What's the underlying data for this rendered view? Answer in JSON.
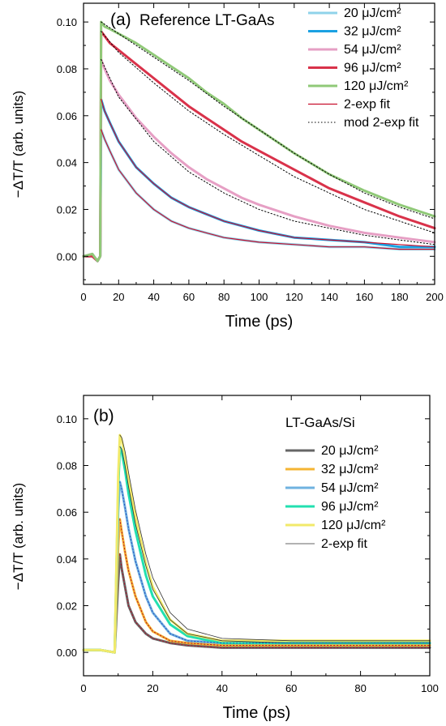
{
  "chart_data": [
    {
      "panel": "(a)",
      "type": "line",
      "title": "Reference LT-GaAs",
      "xlabel": "Time (ps)",
      "ylabel": "−ΔT/T (arb. units)",
      "xlim": [
        0,
        200
      ],
      "ylim": [
        -0.012,
        0.108
      ],
      "xticks": [
        0,
        20,
        40,
        60,
        80,
        100,
        120,
        140,
        160,
        180,
        200
      ],
      "yticks": [
        0.0,
        0.02,
        0.04,
        0.06,
        0.08,
        0.1
      ],
      "ytick_labels": [
        "0.00",
        "0.02",
        "0.04",
        "0.06",
        "0.08",
        "0.10"
      ],
      "legend_position": "top-right",
      "series": [
        {
          "name": "20 μJ/cm²",
          "color": "#8fd3ea",
          "width": 3,
          "style": "solid",
          "x": [
            0,
            5,
            8,
            9.5,
            10,
            12,
            15,
            20,
            30,
            40,
            50,
            60,
            70,
            80,
            90,
            100,
            120,
            140,
            160,
            180,
            200
          ],
          "y": [
            0.0,
            0.001,
            -0.002,
            0.0,
            0.054,
            0.05,
            0.045,
            0.037,
            0.027,
            0.02,
            0.015,
            0.012,
            0.01,
            0.008,
            0.007,
            0.006,
            0.005,
            0.004,
            0.004,
            0.003,
            0.003
          ]
        },
        {
          "name": "32 μJ/cm²",
          "color": "#1ba1e2",
          "width": 3,
          "style": "solid",
          "x": [
            0,
            5,
            8,
            9.5,
            10,
            12,
            15,
            20,
            30,
            40,
            50,
            60,
            70,
            80,
            90,
            100,
            120,
            140,
            160,
            180,
            200
          ],
          "y": [
            0.0,
            0.0,
            -0.002,
            0.0,
            0.067,
            0.062,
            0.057,
            0.049,
            0.038,
            0.031,
            0.025,
            0.021,
            0.018,
            0.015,
            0.013,
            0.011,
            0.008,
            0.007,
            0.006,
            0.004,
            0.004
          ]
        },
        {
          "name": "54 μJ/cm²",
          "color": "#e69fc4",
          "width": 3,
          "style": "solid",
          "x": [
            0,
            5,
            8,
            9.5,
            10,
            12,
            15,
            20,
            30,
            40,
            50,
            60,
            70,
            80,
            90,
            100,
            120,
            140,
            160,
            180,
            200
          ],
          "y": [
            0.0,
            0.001,
            -0.002,
            0.0,
            0.084,
            0.08,
            0.075,
            0.069,
            0.059,
            0.051,
            0.044,
            0.038,
            0.033,
            0.029,
            0.025,
            0.022,
            0.017,
            0.013,
            0.01,
            0.008,
            0.006
          ]
        },
        {
          "name": "96 μJ/cm²",
          "color": "#d9324a",
          "width": 3,
          "style": "solid",
          "x": [
            0,
            5,
            8,
            9.5,
            10,
            12,
            15,
            20,
            30,
            40,
            50,
            60,
            70,
            80,
            90,
            100,
            120,
            140,
            160,
            180,
            200
          ],
          "y": [
            0.0,
            0.0,
            -0.002,
            0.0,
            0.096,
            0.094,
            0.091,
            0.088,
            0.082,
            0.076,
            0.07,
            0.064,
            0.059,
            0.054,
            0.049,
            0.045,
            0.037,
            0.029,
            0.023,
            0.017,
            0.012
          ]
        },
        {
          "name": "120 μJ/cm²",
          "color": "#90c978",
          "width": 3,
          "style": "solid",
          "x": [
            0,
            5,
            8,
            9.5,
            10,
            12,
            15,
            20,
            30,
            40,
            50,
            60,
            70,
            80,
            90,
            100,
            120,
            140,
            160,
            180,
            200
          ],
          "y": [
            0.0,
            0.001,
            -0.002,
            0.0,
            0.1,
            0.098,
            0.097,
            0.095,
            0.091,
            0.086,
            0.081,
            0.076,
            0.07,
            0.065,
            0.059,
            0.054,
            0.044,
            0.035,
            0.028,
            0.022,
            0.017
          ]
        },
        {
          "name": "2-exp fit",
          "color": "#c8102e",
          "width": 1.2,
          "style": "solid",
          "x": [
            10,
            12,
            15,
            20,
            30,
            40,
            50,
            60,
            70,
            80,
            90,
            100,
            120,
            140,
            160,
            180,
            200
          ],
          "y": [
            0.054,
            0.05,
            0.045,
            0.037,
            0.027,
            0.02,
            0.015,
            0.012,
            0.01,
            0.008,
            0.007,
            0.006,
            0.005,
            0.004,
            0.004,
            0.003,
            0.003
          ]
        },
        {
          "name": "2-exp fit",
          "color": "#c8102e",
          "width": 1.2,
          "style": "solid",
          "x": [
            10,
            12,
            15,
            20,
            30,
            40,
            50,
            60,
            70,
            80,
            90,
            100,
            120,
            140,
            160,
            180,
            200
          ],
          "y": [
            0.067,
            0.062,
            0.057,
            0.049,
            0.038,
            0.031,
            0.025,
            0.021,
            0.018,
            0.015,
            0.013,
            0.011,
            0.008,
            0.007,
            0.006,
            0.005,
            0.004
          ]
        },
        {
          "name": "mod 2-exp fit",
          "color": "#000000",
          "width": 1,
          "style": "dotted",
          "x": [
            10,
            20,
            40,
            60,
            80,
            100,
            120,
            140,
            160,
            180,
            200
          ],
          "y": [
            0.084,
            0.068,
            0.049,
            0.036,
            0.027,
            0.02,
            0.015,
            0.012,
            0.009,
            0.007,
            0.005
          ]
        },
        {
          "name": "mod 2-exp fit",
          "color": "#000000",
          "width": 1,
          "style": "dotted",
          "x": [
            10,
            20,
            40,
            60,
            80,
            100,
            120,
            140,
            160,
            180,
            200
          ],
          "y": [
            0.096,
            0.087,
            0.074,
            0.062,
            0.052,
            0.043,
            0.034,
            0.027,
            0.02,
            0.015,
            0.01
          ]
        },
        {
          "name": "mod 2-exp fit",
          "color": "#000000",
          "width": 1,
          "style": "dotted",
          "x": [
            10,
            20,
            40,
            60,
            80,
            100,
            120,
            140,
            160,
            180,
            200
          ],
          "y": [
            0.1,
            0.095,
            0.085,
            0.075,
            0.064,
            0.054,
            0.044,
            0.035,
            0.027,
            0.021,
            0.016
          ]
        }
      ],
      "legend": [
        {
          "label": "20 μJ/cm²",
          "color": "#8fd3ea",
          "width": 3,
          "style": "solid"
        },
        {
          "label": "32 μJ/cm²",
          "color": "#1ba1e2",
          "width": 3,
          "style": "solid"
        },
        {
          "label": "54 μJ/cm²",
          "color": "#e69fc4",
          "width": 3,
          "style": "solid"
        },
        {
          "label": "96 μJ/cm²",
          "color": "#d9324a",
          "width": 3,
          "style": "solid"
        },
        {
          "label": "120 μJ/cm²",
          "color": "#90c978",
          "width": 3,
          "style": "solid"
        },
        {
          "label": "2-exp fit",
          "color": "#c8102e",
          "width": 1.2,
          "style": "solid"
        },
        {
          "label": "mod 2-exp fit",
          "color": "#000000",
          "width": 1,
          "style": "dotted"
        }
      ]
    },
    {
      "panel": "(b)",
      "type": "line",
      "title": "LT-GaAs/Si",
      "xlabel": "Time (ps)",
      "ylabel": "−ΔT/T (arb. units)",
      "xlim": [
        0,
        100
      ],
      "ylim": [
        -0.01,
        0.11
      ],
      "xticks": [
        0,
        20,
        40,
        60,
        80,
        100
      ],
      "yticks": [
        0.0,
        0.02,
        0.04,
        0.06,
        0.08,
        0.1
      ],
      "ytick_labels": [
        "0.00",
        "0.02",
        "0.04",
        "0.06",
        "0.08",
        "0.10"
      ],
      "legend_position": "top-right",
      "series": [
        {
          "name": "20 μJ/cm²",
          "color": "#666666",
          "width": 3,
          "style": "solid",
          "x": [
            0,
            5,
            9,
            10,
            10.5,
            11,
            12,
            13,
            15,
            18,
            20,
            25,
            30,
            40,
            50,
            60,
            70,
            80,
            90,
            100
          ],
          "y": [
            0.001,
            0.001,
            0.0,
            0.03,
            0.042,
            0.036,
            0.028,
            0.02,
            0.013,
            0.008,
            0.006,
            0.004,
            0.003,
            0.002,
            0.002,
            0.002,
            0.002,
            0.002,
            0.002,
            0.002
          ]
        },
        {
          "name": "32 μJ/cm²",
          "color": "#f5b533",
          "width": 3,
          "style": "solid",
          "x": [
            0,
            5,
            9,
            10,
            10.5,
            11,
            12,
            13,
            15,
            18,
            20,
            25,
            30,
            40,
            50,
            60,
            70,
            80,
            90,
            100
          ],
          "y": [
            0.001,
            0.001,
            0.0,
            0.045,
            0.057,
            0.052,
            0.043,
            0.035,
            0.024,
            0.013,
            0.009,
            0.005,
            0.004,
            0.003,
            0.003,
            0.003,
            0.003,
            0.003,
            0.003,
            0.003
          ]
        },
        {
          "name": "54 μJ/cm²",
          "color": "#6fb2e0",
          "width": 3,
          "style": "solid",
          "x": [
            0,
            5,
            9,
            10,
            10.5,
            11,
            12,
            13,
            15,
            18,
            20,
            25,
            30,
            40,
            50,
            60,
            70,
            80,
            90,
            100
          ],
          "y": [
            0.001,
            0.001,
            0.0,
            0.06,
            0.073,
            0.07,
            0.062,
            0.053,
            0.039,
            0.024,
            0.017,
            0.008,
            0.005,
            0.004,
            0.004,
            0.004,
            0.004,
            0.004,
            0.004,
            0.004
          ]
        },
        {
          "name": "96 μJ/cm²",
          "color": "#22e0b0",
          "width": 3,
          "style": "solid",
          "x": [
            0,
            5,
            9,
            10,
            10.5,
            11,
            12,
            13,
            15,
            18,
            20,
            25,
            30,
            40,
            50,
            60,
            70,
            80,
            90,
            100
          ],
          "y": [
            0.001,
            0.001,
            0.0,
            0.07,
            0.088,
            0.086,
            0.078,
            0.068,
            0.052,
            0.033,
            0.024,
            0.012,
            0.007,
            0.004,
            0.004,
            0.004,
            0.004,
            0.004,
            0.004,
            0.004
          ]
        },
        {
          "name": "120 μJ/cm²",
          "color": "#f2ea6a",
          "width": 3,
          "style": "solid",
          "x": [
            0,
            5,
            9,
            10,
            10.5,
            11,
            12,
            13,
            15,
            18,
            20,
            25,
            30,
            40,
            50,
            60,
            70,
            80,
            90,
            100
          ],
          "y": [
            0.001,
            0.001,
            0.0,
            0.075,
            0.093,
            0.091,
            0.084,
            0.074,
            0.058,
            0.038,
            0.028,
            0.014,
            0.008,
            0.005,
            0.005,
            0.005,
            0.005,
            0.005,
            0.005,
            0.005
          ]
        },
        {
          "name": "2-exp fit",
          "color": "#333333",
          "width": 0.8,
          "style": "solid",
          "x": [
            10.5,
            11,
            12,
            13,
            15,
            18,
            20,
            25,
            30,
            40,
            60,
            80,
            100
          ],
          "y": [
            0.093,
            0.092,
            0.086,
            0.077,
            0.061,
            0.042,
            0.032,
            0.017,
            0.01,
            0.006,
            0.005,
            0.005,
            0.005
          ]
        },
        {
          "name": "2-exp fit",
          "color": "#333333",
          "width": 0.8,
          "style": "solid",
          "x": [
            10.5,
            11,
            12,
            13,
            15,
            18,
            20,
            25,
            30,
            40,
            60,
            80,
            100
          ],
          "y": [
            0.088,
            0.087,
            0.08,
            0.071,
            0.055,
            0.037,
            0.027,
            0.014,
            0.008,
            0.005,
            0.004,
            0.004,
            0.004
          ]
        },
        {
          "name": "",
          "color": "#2a4dbf",
          "width": 1,
          "style": "dotted",
          "x": [
            10.5,
            11,
            12,
            13,
            15,
            18,
            20,
            25,
            30,
            40,
            60,
            100
          ],
          "y": [
            0.073,
            0.07,
            0.062,
            0.053,
            0.039,
            0.024,
            0.017,
            0.008,
            0.005,
            0.004,
            0.004,
            0.004
          ]
        },
        {
          "name": "",
          "color": "#b5122b",
          "width": 1,
          "style": "dotted",
          "x": [
            10.5,
            11,
            12,
            13,
            15,
            18,
            20,
            25,
            30,
            40,
            60,
            100
          ],
          "y": [
            0.057,
            0.052,
            0.043,
            0.035,
            0.024,
            0.013,
            0.009,
            0.005,
            0.004,
            0.003,
            0.003,
            0.003
          ]
        },
        {
          "name": "",
          "color": "#b5122b",
          "width": 1,
          "style": "dotted",
          "x": [
            10.5,
            11,
            12,
            13,
            15,
            18,
            20,
            25,
            30,
            40,
            60,
            100
          ],
          "y": [
            0.042,
            0.036,
            0.028,
            0.02,
            0.013,
            0.008,
            0.006,
            0.004,
            0.003,
            0.002,
            0.002,
            0.002
          ]
        }
      ],
      "legend": [
        {
          "label": "20 μJ/cm²",
          "color": "#666666",
          "width": 3,
          "style": "solid"
        },
        {
          "label": "32 μJ/cm²",
          "color": "#f5b533",
          "width": 3,
          "style": "solid"
        },
        {
          "label": "54 μJ/cm²",
          "color": "#6fb2e0",
          "width": 3,
          "style": "solid"
        },
        {
          "label": "96 μJ/cm²",
          "color": "#22e0b0",
          "width": 3,
          "style": "solid"
        },
        {
          "label": "120 μJ/cm²",
          "color": "#f2ea6a",
          "width": 3,
          "style": "solid"
        },
        {
          "label": "2-exp fit",
          "color": "#333333",
          "width": 0.8,
          "style": "solid"
        }
      ]
    }
  ]
}
